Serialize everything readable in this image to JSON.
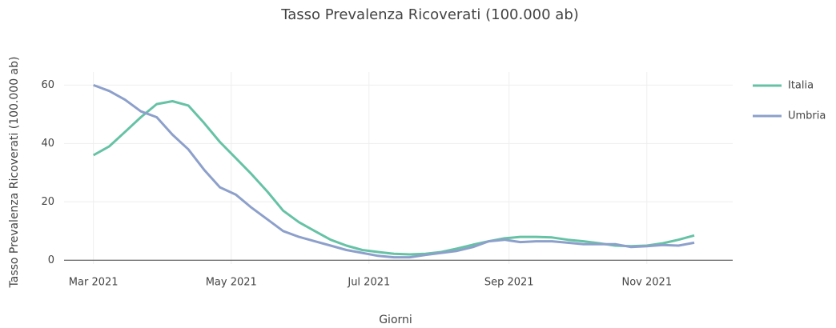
{
  "chart_data": {
    "type": "line",
    "title": "Tasso Prevalenza Ricoverati (100.000 ab)",
    "x_label": "Giorni",
    "y_label": "Tasso Prevalenza Ricoverati (100.000 ab)",
    "x": [
      0,
      7,
      14,
      21,
      28,
      35,
      42,
      49,
      56,
      63,
      70,
      77,
      84,
      91,
      98,
      105,
      112,
      119,
      126,
      133,
      140,
      147,
      154,
      161,
      168,
      175,
      182,
      189,
      196,
      203,
      210,
      217,
      224,
      231,
      238,
      245,
      252,
      259,
      266
    ],
    "series": [
      {
        "name": "Italia",
        "color": "#66c2a5",
        "values": [
          36,
          39,
          44,
          49,
          53.5,
          54.5,
          53,
          47,
          40.5,
          35,
          29.5,
          23.5,
          17,
          13,
          10,
          7,
          5,
          3.5,
          2.8,
          2.2,
          2,
          2.2,
          2.8,
          4,
          5.3,
          6.5,
          7.5,
          8,
          8,
          7.8,
          7,
          6.5,
          5.8,
          5,
          4.8,
          5,
          5.8,
          7,
          8.5
        ]
      },
      {
        "name": "Umbria",
        "color": "#8da0cb",
        "values": [
          60,
          58,
          55,
          51,
          49,
          43,
          38,
          31,
          25,
          22.5,
          18,
          14,
          10,
          8,
          6.5,
          5,
          3.5,
          2.5,
          1.5,
          1,
          1,
          1.8,
          2.5,
          3.2,
          4.5,
          6.5,
          7,
          6.2,
          6.5,
          6.5,
          6,
          5.5,
          5.5,
          5.5,
          4.5,
          4.8,
          5.2,
          5,
          6
        ]
      }
    ],
    "xlim": [
      -13,
      283
    ],
    "xticks": [
      {
        "value": 0,
        "label": "Mar 2021"
      },
      {
        "value": 61,
        "label": "May 2021"
      },
      {
        "value": 122,
        "label": "Jul 2021"
      },
      {
        "value": 184,
        "label": "Sep 2021"
      },
      {
        "value": 245,
        "label": "Nov 2021"
      }
    ],
    "ylim": [
      -1.3,
      64.5
    ],
    "yticks": [
      0,
      20,
      40,
      60
    ],
    "grid": true,
    "legend": "right"
  }
}
